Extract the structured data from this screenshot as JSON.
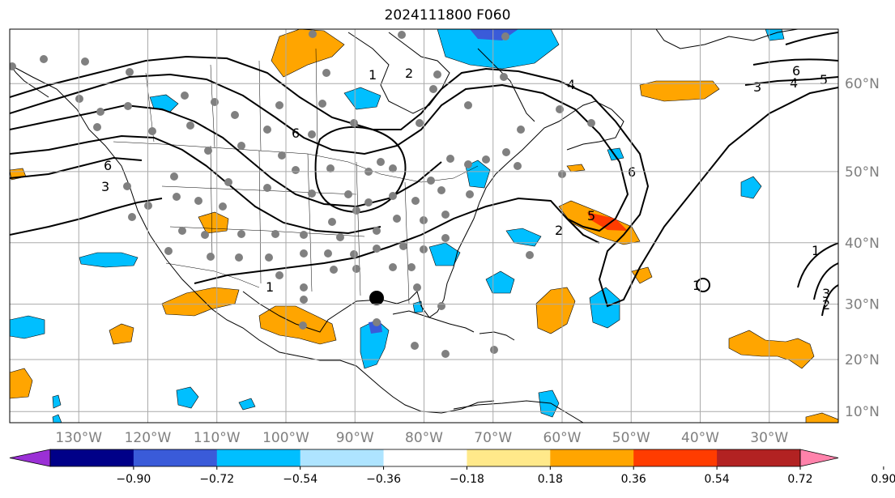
{
  "title": "2024111800 F060",
  "map": {
    "lon_range": [
      -140,
      -20
    ],
    "lat_range": [
      7.8,
      65
    ],
    "lon_ticks": [
      {
        "lon": -130,
        "label": "130°W"
      },
      {
        "lon": -120,
        "label": "120°W"
      },
      {
        "lon": -110,
        "label": "110°W"
      },
      {
        "lon": -100,
        "label": "100°W"
      },
      {
        "lon": -90,
        "label": "90°W"
      },
      {
        "lon": -80,
        "label": "80°W"
      },
      {
        "lon": -70,
        "label": "70°W"
      },
      {
        "lon": -60,
        "label": "60°W"
      },
      {
        "lon": -50,
        "label": "50°W"
      },
      {
        "lon": -40,
        "label": "40°W"
      },
      {
        "lon": -30,
        "label": "30°W"
      }
    ],
    "lat_ticks": [
      {
        "lat": 60,
        "label": "60°N"
      },
      {
        "lat": 50,
        "label": "50°N"
      },
      {
        "lat": 40,
        "label": "40°N"
      },
      {
        "lat": 30,
        "label": "30°N"
      },
      {
        "lat": 20,
        "label": "20°N"
      },
      {
        "lat": 10,
        "label": "10°N"
      }
    ],
    "grid": true
  },
  "colorbar": {
    "levels": [
      "−0.90",
      "−0.72",
      "−0.54",
      "−0.36",
      "−0.18",
      "0.18",
      "0.36",
      "0.54",
      "0.72",
      "0.90"
    ],
    "colors": [
      "#9b30d6",
      "#000088",
      "#3a5bd9",
      "#00bfff",
      "#aee4ff",
      "#ffffff",
      "#ffe98a",
      "#ffa500",
      "#ff3c00",
      "#b22222",
      "#ff82ab"
    ],
    "extend": "both"
  },
  "contour_labels": [
    "1",
    "2",
    "3",
    "4",
    "5",
    "6"
  ],
  "colors": {
    "negative_fill": "#00bfff",
    "positive_fill": "#ffa500",
    "strong_positive": "#ff3c00",
    "strong_negative": "#3a5bd9",
    "station_marker": "#808080",
    "grid": "#aaaaaa"
  }
}
